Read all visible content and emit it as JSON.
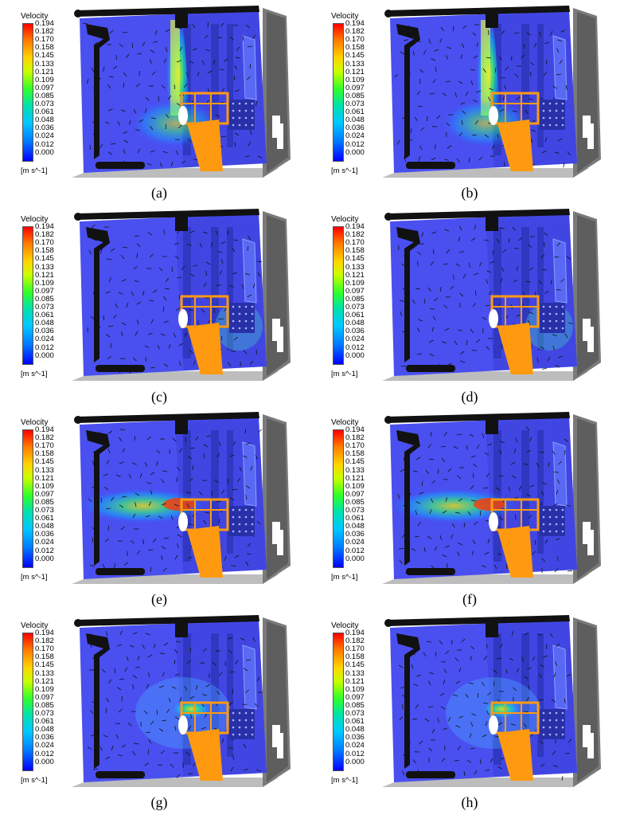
{
  "legend": {
    "title": "Velocity",
    "unit": "[m s^-1]",
    "ticks": [
      "0.194",
      "0.182",
      "0.170",
      "0.158",
      "0.145",
      "0.133",
      "0.121",
      "0.109",
      "0.097",
      "0.085",
      "0.073",
      "0.061",
      "0.048",
      "0.036",
      "0.024",
      "0.012",
      "0.000"
    ]
  },
  "panels": [
    {
      "caption": "(a)"
    },
    {
      "caption": "(b)"
    },
    {
      "caption": "(c)"
    },
    {
      "caption": "(d)"
    },
    {
      "caption": "(e)"
    },
    {
      "caption": "(f)"
    },
    {
      "caption": "(g)"
    },
    {
      "caption": "(h)"
    }
  ]
}
